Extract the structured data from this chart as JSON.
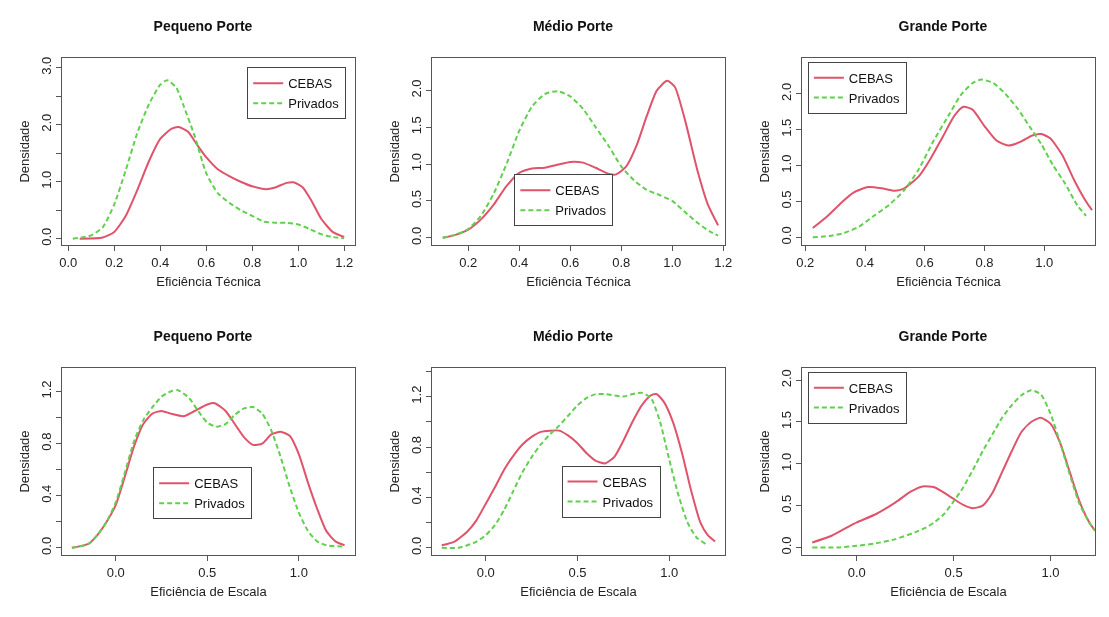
{
  "chart_data": [
    {
      "type": "line",
      "title": "Pequeno Porte",
      "xlabel": "Eficiência Técnica",
      "ylabel": "Densidade",
      "xlim": [
        -0.027,
        1.247
      ],
      "ylim": [
        -0.11,
        3.17
      ],
      "xticks": [
        {
          "value": 0,
          "label": "0.0"
        },
        {
          "value": 0.2,
          "label": "0.2"
        },
        {
          "value": 0.4,
          "label": "0.4"
        },
        {
          "value": 0.6,
          "label": "0.6"
        },
        {
          "value": 0.8,
          "label": "0.8"
        },
        {
          "value": 1,
          "label": "1.0"
        },
        {
          "value": 1.2,
          "label": "1.2"
        }
      ],
      "yticks": [
        {
          "value": 0,
          "label": "0.0"
        },
        {
          "value": 0.5,
          "label": null
        },
        {
          "value": 1,
          "label": "1.0"
        },
        {
          "value": 1.5,
          "label": null
        },
        {
          "value": 2,
          "label": "2.0"
        },
        {
          "value": 2.5,
          "label": null
        },
        {
          "value": 3,
          "label": "3.0"
        }
      ],
      "grid": false,
      "legend": "top right",
      "series": [
        {
          "name": "CEBAS",
          "color": "#df536b",
          "line_style": "solid",
          "x": [
            0.05,
            0.15,
            0.2,
            0.25,
            0.3,
            0.35,
            0.4,
            0.45,
            0.48,
            0.52,
            0.56,
            0.6,
            0.65,
            0.7,
            0.75,
            0.8,
            0.86,
            0.9,
            0.95,
            0.98,
            1.02,
            1.06,
            1.1,
            1.15,
            1.2
          ],
          "values": [
            0,
            0.02,
            0.12,
            0.4,
            0.85,
            1.35,
            1.75,
            1.93,
            1.96,
            1.88,
            1.65,
            1.43,
            1.22,
            1.1,
            1.0,
            0.92,
            0.87,
            0.9,
            0.98,
            0.99,
            0.9,
            0.65,
            0.35,
            0.12,
            0.03
          ]
        },
        {
          "name": "Privados",
          "color": "#61d04f",
          "line_style": "dashed",
          "x": [
            0.02,
            0.1,
            0.15,
            0.2,
            0.25,
            0.3,
            0.35,
            0.4,
            0.43,
            0.47,
            0.5,
            0.55,
            0.6,
            0.65,
            0.7,
            0.75,
            0.8,
            0.85,
            0.9,
            0.95,
            1.0,
            1.05,
            1.1,
            1.15,
            1.2
          ],
          "values": [
            0,
            0.06,
            0.2,
            0.6,
            1.2,
            1.85,
            2.35,
            2.7,
            2.78,
            2.65,
            2.35,
            1.8,
            1.15,
            0.8,
            0.63,
            0.5,
            0.4,
            0.3,
            0.28,
            0.28,
            0.25,
            0.17,
            0.08,
            0.03,
            0.01
          ]
        }
      ]
    },
    {
      "type": "line",
      "title": "Médio Porte",
      "xlabel": "Eficiência Técnica",
      "ylabel": "Densidade",
      "xlim": [
        0.058,
        1.207
      ],
      "ylim": [
        -0.098,
        2.44
      ],
      "xticks": [
        {
          "value": 0.2,
          "label": "0.2"
        },
        {
          "value": 0.4,
          "label": "0.4"
        },
        {
          "value": 0.6,
          "label": "0.6"
        },
        {
          "value": 0.8,
          "label": "0.8"
        },
        {
          "value": 1,
          "label": "1.0"
        },
        {
          "value": 1.2,
          "label": "1.2"
        }
      ],
      "yticks": [
        {
          "value": 0,
          "label": "0.0"
        },
        {
          "value": 0.5,
          "label": "0.5"
        },
        {
          "value": 1,
          "label": "1.0"
        },
        {
          "value": 1.5,
          "label": "1.5"
        },
        {
          "value": 2,
          "label": "2.0"
        }
      ],
      "grid": false,
      "legend": "bottom",
      "series": [
        {
          "name": "CEBAS",
          "color": "#df536b",
          "line_style": "solid",
          "x": [
            0.1,
            0.15,
            0.2,
            0.25,
            0.3,
            0.35,
            0.4,
            0.45,
            0.5,
            0.55,
            0.6,
            0.65,
            0.7,
            0.75,
            0.78,
            0.82,
            0.86,
            0.9,
            0.94,
            0.98,
            1.01,
            1.05,
            1.1,
            1.14,
            1.18
          ],
          "values": [
            0,
            0.04,
            0.11,
            0.25,
            0.45,
            0.7,
            0.88,
            0.94,
            0.95,
            0.99,
            1.03,
            1.02,
            0.95,
            0.87,
            0.86,
            0.97,
            1.25,
            1.65,
            2.0,
            2.13,
            2.05,
            1.6,
            0.9,
            0.45,
            0.17
          ]
        },
        {
          "name": "Privados",
          "color": "#61d04f",
          "line_style": "dashed",
          "x": [
            0.1,
            0.15,
            0.2,
            0.25,
            0.3,
            0.35,
            0.4,
            0.45,
            0.5,
            0.55,
            0.6,
            0.65,
            0.7,
            0.75,
            0.8,
            0.85,
            0.9,
            0.95,
            1.0,
            1.05,
            1.1,
            1.15,
            1.18
          ],
          "values": [
            0,
            0.04,
            0.12,
            0.3,
            0.6,
            1.0,
            1.45,
            1.78,
            1.95,
            1.99,
            1.92,
            1.75,
            1.5,
            1.25,
            0.97,
            0.78,
            0.65,
            0.58,
            0.5,
            0.35,
            0.2,
            0.08,
            0.03
          ]
        }
      ]
    },
    {
      "type": "line",
      "title": "Grande Porte",
      "xlabel": "Eficiência Técnica",
      "ylabel": "Densidade",
      "xlim": [
        0.189,
        1.17
      ],
      "ylim": [
        -0.107,
        2.5
      ],
      "xticks": [
        {
          "value": 0.2,
          "label": "0.2"
        },
        {
          "value": 0.4,
          "label": "0.4"
        },
        {
          "value": 0.6,
          "label": "0.6"
        },
        {
          "value": 0.8,
          "label": "0.8"
        },
        {
          "value": 1,
          "label": "1.0"
        }
      ],
      "yticks": [
        {
          "value": 0,
          "label": "0.0"
        },
        {
          "value": 0.5,
          "label": "0.5"
        },
        {
          "value": 1,
          "label": "1.0"
        },
        {
          "value": 1.5,
          "label": "1.5"
        },
        {
          "value": 2,
          "label": "2.0"
        }
      ],
      "grid": false,
      "legend": "top left",
      "series": [
        {
          "name": "CEBAS",
          "color": "#df536b",
          "line_style": "solid",
          "x": [
            0.225,
            0.27,
            0.32,
            0.36,
            0.41,
            0.46,
            0.5,
            0.53,
            0.58,
            0.62,
            0.66,
            0.7,
            0.73,
            0.76,
            0.8,
            0.84,
            0.88,
            0.92,
            0.96,
            0.99,
            1.02,
            1.06,
            1.1,
            1.14,
            1.16
          ],
          "values": [
            0.13,
            0.28,
            0.48,
            0.62,
            0.7,
            0.68,
            0.65,
            0.68,
            0.85,
            1.1,
            1.4,
            1.7,
            1.82,
            1.78,
            1.55,
            1.35,
            1.28,
            1.33,
            1.42,
            1.44,
            1.38,
            1.15,
            0.8,
            0.5,
            0.38
          ]
        },
        {
          "name": "Privados",
          "color": "#61d04f",
          "line_style": "dashed",
          "x": [
            0.225,
            0.28,
            0.33,
            0.38,
            0.43,
            0.48,
            0.53,
            0.58,
            0.63,
            0.68,
            0.72,
            0.76,
            0.79,
            0.83,
            0.87,
            0.91,
            0.95,
            0.99,
            1.03,
            1.07,
            1.11,
            1.14
          ],
          "values": [
            0,
            0.02,
            0.06,
            0.15,
            0.3,
            0.45,
            0.65,
            0.95,
            1.35,
            1.7,
            1.98,
            2.15,
            2.2,
            2.15,
            2.0,
            1.8,
            1.55,
            1.3,
            1.0,
            0.75,
            0.45,
            0.3
          ]
        }
      ]
    },
    {
      "type": "line",
      "title": "Pequeno Porte",
      "xlabel": "Eficiência de Escala",
      "ylabel": "Densidade",
      "xlim": [
        -0.294,
        1.307
      ],
      "ylim": [
        -0.055,
        1.38
      ],
      "xticks": [
        {
          "value": 0,
          "label": "0.0"
        },
        {
          "value": 0.5,
          "label": "0.5"
        },
        {
          "value": 1,
          "label": "1.0"
        }
      ],
      "yticks": [
        {
          "value": 0,
          "label": "0.0"
        },
        {
          "value": 0.2,
          "label": null
        },
        {
          "value": 0.4,
          "label": "0.4"
        },
        {
          "value": 0.6,
          "label": null
        },
        {
          "value": 0.8,
          "label": "0.8"
        },
        {
          "value": 1,
          "label": null
        },
        {
          "value": 1.2,
          "label": "1.2"
        }
      ],
      "grid": false,
      "legend": "center",
      "series": [
        {
          "name": "CEBAS",
          "color": "#df536b",
          "line_style": "solid",
          "x": [
            -0.24,
            -0.15,
            -0.1,
            -0.05,
            0,
            0.05,
            0.1,
            0.15,
            0.2,
            0.25,
            0.3,
            0.37,
            0.43,
            0.5,
            0.54,
            0.6,
            0.65,
            0.7,
            0.75,
            0.8,
            0.85,
            0.9,
            0.95,
            1.0,
            1.05,
            1.1,
            1.15,
            1.2,
            1.25
          ],
          "values": [
            0,
            0.03,
            0.1,
            0.2,
            0.33,
            0.55,
            0.78,
            0.95,
            1.03,
            1.05,
            1.03,
            1.01,
            1.05,
            1.1,
            1.11,
            1.05,
            0.95,
            0.85,
            0.79,
            0.8,
            0.87,
            0.89,
            0.86,
            0.72,
            0.5,
            0.3,
            0.13,
            0.05,
            0.02
          ]
        },
        {
          "name": "Privados",
          "color": "#61d04f",
          "line_style": "dashed",
          "x": [
            -0.24,
            -0.15,
            -0.1,
            -0.05,
            0,
            0.05,
            0.1,
            0.15,
            0.2,
            0.25,
            0.3,
            0.34,
            0.4,
            0.45,
            0.5,
            0.55,
            0.6,
            0.65,
            0.7,
            0.75,
            0.8,
            0.85,
            0.9,
            0.95,
            1.0,
            1.05,
            1.1,
            1.15,
            1.25
          ],
          "values": [
            0,
            0.03,
            0.1,
            0.2,
            0.35,
            0.58,
            0.82,
            0.98,
            1.08,
            1.16,
            1.2,
            1.21,
            1.15,
            1.05,
            0.96,
            0.93,
            0.95,
            1.02,
            1.07,
            1.08,
            1.03,
            0.9,
            0.7,
            0.47,
            0.27,
            0.13,
            0.05,
            0.02,
            0.01
          ]
        }
      ]
    },
    {
      "type": "line",
      "title": "Médio Porte",
      "xlabel": "Eficiência de Escala",
      "ylabel": "Densidade",
      "xlim": [
        -0.293,
        1.304
      ],
      "ylim": [
        -0.057,
        1.427
      ],
      "xticks": [
        {
          "value": 0,
          "label": "0.0"
        },
        {
          "value": 0.5,
          "label": "0.5"
        },
        {
          "value": 1,
          "label": "1.0"
        }
      ],
      "yticks": [
        {
          "value": 0,
          "label": "0.0"
        },
        {
          "value": 0.2,
          "label": null
        },
        {
          "value": 0.4,
          "label": "0.4"
        },
        {
          "value": 0.6,
          "label": null
        },
        {
          "value": 0.8,
          "label": "0.8"
        },
        {
          "value": 1,
          "label": null
        },
        {
          "value": 1.2,
          "label": "1.2"
        },
        {
          "value": 1.4,
          "label": null
        }
      ],
      "grid": false,
      "legend": "bottom right",
      "series": [
        {
          "name": "CEBAS",
          "color": "#df536b",
          "line_style": "solid",
          "x": [
            -0.24,
            -0.17,
            -0.1,
            -0.05,
            0,
            0.05,
            0.1,
            0.15,
            0.2,
            0.25,
            0.3,
            0.35,
            0.4,
            0.45,
            0.5,
            0.55,
            0.6,
            0.65,
            0.7,
            0.75,
            0.8,
            0.85,
            0.9,
            0.93,
            0.97,
            1.02,
            1.07,
            1.12,
            1.17,
            1.21,
            1.25
          ],
          "values": [
            0.02,
            0.05,
            0.13,
            0.22,
            0.35,
            0.48,
            0.62,
            0.73,
            0.82,
            0.88,
            0.92,
            0.93,
            0.93,
            0.89,
            0.83,
            0.75,
            0.69,
            0.67,
            0.72,
            0.85,
            1.0,
            1.13,
            1.21,
            1.22,
            1.16,
            1.0,
            0.75,
            0.45,
            0.2,
            0.1,
            0.05
          ]
        },
        {
          "name": "Privados",
          "color": "#61d04f",
          "line_style": "dashed",
          "x": [
            -0.24,
            -0.15,
            -0.1,
            -0.05,
            0,
            0.05,
            0.1,
            0.15,
            0.2,
            0.25,
            0.3,
            0.35,
            0.4,
            0.45,
            0.5,
            0.55,
            0.6,
            0.65,
            0.7,
            0.75,
            0.8,
            0.85,
            0.9,
            0.95,
            1.0,
            1.05,
            1.1,
            1.15,
            1.2
          ],
          "values": [
            0,
            0,
            0.02,
            0.05,
            0.1,
            0.18,
            0.3,
            0.45,
            0.6,
            0.72,
            0.82,
            0.9,
            0.97,
            1.05,
            1.13,
            1.19,
            1.22,
            1.22,
            1.21,
            1.2,
            1.22,
            1.23,
            1.19,
            1.0,
            0.7,
            0.42,
            0.2,
            0.08,
            0.03
          ]
        }
      ]
    },
    {
      "type": "line",
      "title": "Grande Porte",
      "xlabel": "Eficiência de Escala",
      "ylabel": "Densidade",
      "xlim": [
        -0.283,
        1.23
      ],
      "ylim": [
        -0.09,
        2.145
      ],
      "xticks": [
        {
          "value": 0,
          "label": "0.0"
        },
        {
          "value": 0.5,
          "label": "0.5"
        },
        {
          "value": 1,
          "label": "1.0"
        }
      ],
      "yticks": [
        {
          "value": 0,
          "label": "0.0"
        },
        {
          "value": 0.5,
          "label": "0.5"
        },
        {
          "value": 1,
          "label": "1.0"
        },
        {
          "value": 1.5,
          "label": "1.5"
        },
        {
          "value": 2,
          "label": "2.0"
        }
      ],
      "grid": false,
      "legend": "top left",
      "series": [
        {
          "name": "CEBAS",
          "color": "#df536b",
          "line_style": "solid",
          "x": [
            -0.23,
            -0.13,
            -0.05,
            0,
            0.1,
            0.2,
            0.28,
            0.34,
            0.4,
            0.46,
            0.5,
            0.55,
            0.6,
            0.65,
            0.7,
            0.75,
            0.8,
            0.85,
            0.9,
            0.95,
            1.0,
            1.05,
            1.1,
            1.15,
            1.2,
            1.23
          ],
          "values": [
            0.06,
            0.14,
            0.24,
            0.3,
            0.4,
            0.54,
            0.67,
            0.73,
            0.72,
            0.64,
            0.58,
            0.51,
            0.47,
            0.5,
            0.65,
            0.9,
            1.15,
            1.38,
            1.5,
            1.55,
            1.48,
            1.25,
            0.9,
            0.55,
            0.3,
            0.2
          ]
        },
        {
          "name": "Privados",
          "color": "#61d04f",
          "line_style": "dashed",
          "x": [
            -0.23,
            -0.1,
            0,
            0.1,
            0.2,
            0.3,
            0.35,
            0.4,
            0.45,
            0.5,
            0.55,
            0.6,
            0.65,
            0.7,
            0.75,
            0.8,
            0.85,
            0.9,
            0.95,
            1.0,
            1.05,
            1.1,
            1.15,
            1.2,
            1.23
          ],
          "values": [
            0,
            0,
            0.02,
            0.05,
            0.1,
            0.18,
            0.23,
            0.3,
            0.4,
            0.55,
            0.72,
            0.93,
            1.15,
            1.35,
            1.55,
            1.7,
            1.82,
            1.88,
            1.83,
            1.6,
            1.25,
            0.87,
            0.52,
            0.3,
            0.2
          ]
        }
      ]
    }
  ]
}
